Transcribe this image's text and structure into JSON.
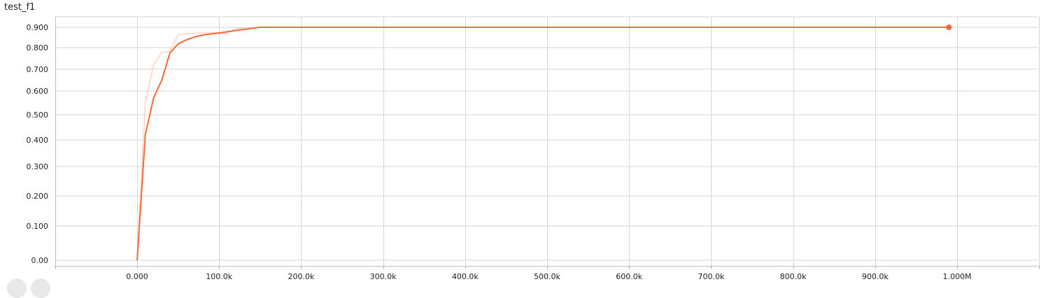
{
  "card": {
    "title": "test_f1"
  },
  "colors": {
    "smoothed": "#f26b3a",
    "raw": "#fbd2c2",
    "grid": "#d6d6d6"
  },
  "chart_data": {
    "type": "line",
    "title": "test_f1",
    "xlabel": "",
    "ylabel": "",
    "xlim": [
      -100000,
      1100000
    ],
    "ylim": [
      -0.01,
      0.93
    ],
    "y_scale": "nonlinear",
    "grid": true,
    "x_ticks": [
      {
        "value": 0,
        "label": "0.000"
      },
      {
        "value": 100000,
        "label": "100.0k"
      },
      {
        "value": 200000,
        "label": "200.0k"
      },
      {
        "value": 300000,
        "label": "300.0k"
      },
      {
        "value": 400000,
        "label": "400.0k"
      },
      {
        "value": 500000,
        "label": "500.0k"
      },
      {
        "value": 600000,
        "label": "600.0k"
      },
      {
        "value": 700000,
        "label": "700.0k"
      },
      {
        "value": 800000,
        "label": "800.0k"
      },
      {
        "value": 900000,
        "label": "900.0k"
      },
      {
        "value": 1000000,
        "label": "1.000M"
      }
    ],
    "y_ticks": [
      {
        "value": 0.0,
        "label": "0.00"
      },
      {
        "value": 0.1,
        "label": "0.100"
      },
      {
        "value": 0.2,
        "label": "0.200"
      },
      {
        "value": 0.3,
        "label": "0.300"
      },
      {
        "value": 0.4,
        "label": "0.400"
      },
      {
        "value": 0.5,
        "label": "0.500"
      },
      {
        "value": 0.6,
        "label": "0.600"
      },
      {
        "value": 0.7,
        "label": "0.700"
      },
      {
        "value": 0.8,
        "label": "0.800"
      },
      {
        "value": 0.9,
        "label": "0.900"
      }
    ],
    "series": [
      {
        "role": "raw",
        "x": [
          0,
          10000,
          20000,
          30000,
          40000,
          50000,
          60000,
          70000,
          80000,
          90000,
          100000,
          110000,
          120000,
          150000,
          200000,
          300000,
          500000,
          700000,
          900000,
          990000
        ],
        "y": [
          0.0,
          0.55,
          0.72,
          0.78,
          0.78,
          0.865,
          0.868,
          0.87,
          0.872,
          0.873,
          0.874,
          0.868,
          0.895,
          0.9,
          0.9,
          0.9,
          0.9,
          0.9,
          0.9,
          0.9
        ]
      },
      {
        "role": "smoothed",
        "x": [
          0,
          10000,
          20000,
          30000,
          40000,
          50000,
          60000,
          70000,
          80000,
          100000,
          120000,
          150000,
          210000,
          300000,
          500000,
          700000,
          900000,
          990000
        ],
        "y": [
          0.0,
          0.42,
          0.57,
          0.65,
          0.775,
          0.818,
          0.838,
          0.852,
          0.862,
          0.872,
          0.884,
          0.9,
          0.9,
          0.9,
          0.9,
          0.9,
          0.9,
          0.9
        ]
      }
    ],
    "highlight_point": {
      "x": 990000,
      "y": 0.9
    }
  }
}
